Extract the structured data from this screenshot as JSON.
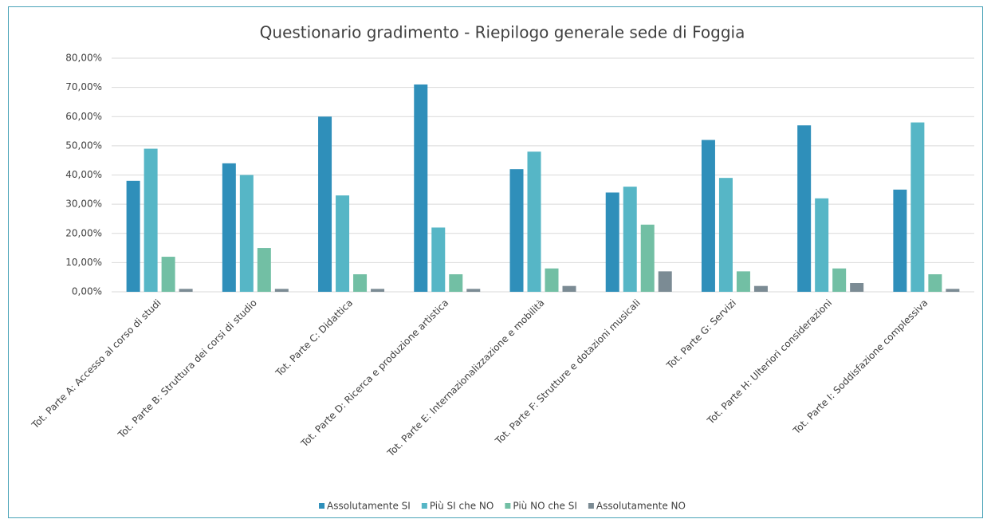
{
  "chart_data": {
    "type": "bar",
    "title": "Questionario gradimento - Riepilogo generale sede di Foggia",
    "categories": [
      "Tot. Parte A: Accesso al corso di studi",
      "Tot. Parte B: Struttura dei corsi di studio",
      "Tot. Parte C: Didattica",
      "Tot. Parte D: Ricerca e produzione artistica",
      "Tot. Parte E: Internazionalizzazione e mobilità",
      "Tot. Parte F: Strutture e dotazioni musicali",
      "Tot. Parte G: Servizi",
      "Tot. Parte H: Ulteriori considerazioni",
      "Tot. Parte I: Soddisfazione complessiva"
    ],
    "series": [
      {
        "name": "Assolutamente SI",
        "color": "#2f8fba",
        "values": [
          38,
          44,
          60,
          71,
          42,
          34,
          52,
          57,
          35
        ]
      },
      {
        "name": "Più SI che NO",
        "color": "#56b6c6",
        "values": [
          49,
          40,
          33,
          22,
          48,
          36,
          39,
          32,
          58
        ]
      },
      {
        "name": "Più NO che SI",
        "color": "#72bfa4",
        "values": [
          12,
          15,
          6,
          6,
          8,
          23,
          7,
          8,
          6
        ]
      },
      {
        "name": "Assolutamente NO",
        "color": "#7b8b94",
        "values": [
          1,
          1,
          1,
          1,
          2,
          7,
          2,
          3,
          1
        ]
      }
    ],
    "ylim": [
      0,
      80
    ],
    "yticks": [
      {
        "value": 0,
        "label": "0,00%"
      },
      {
        "value": 10,
        "label": "10,00%"
      },
      {
        "value": 20,
        "label": "20,00%"
      },
      {
        "value": 30,
        "label": "30,00%"
      },
      {
        "value": 40,
        "label": "40,00%"
      },
      {
        "value": 50,
        "label": "50,00%"
      },
      {
        "value": 60,
        "label": "60,00%"
      },
      {
        "value": 70,
        "label": "70,00%"
      },
      {
        "value": 80,
        "label": "80,00%"
      }
    ],
    "grid": true,
    "legend": "bottom"
  }
}
